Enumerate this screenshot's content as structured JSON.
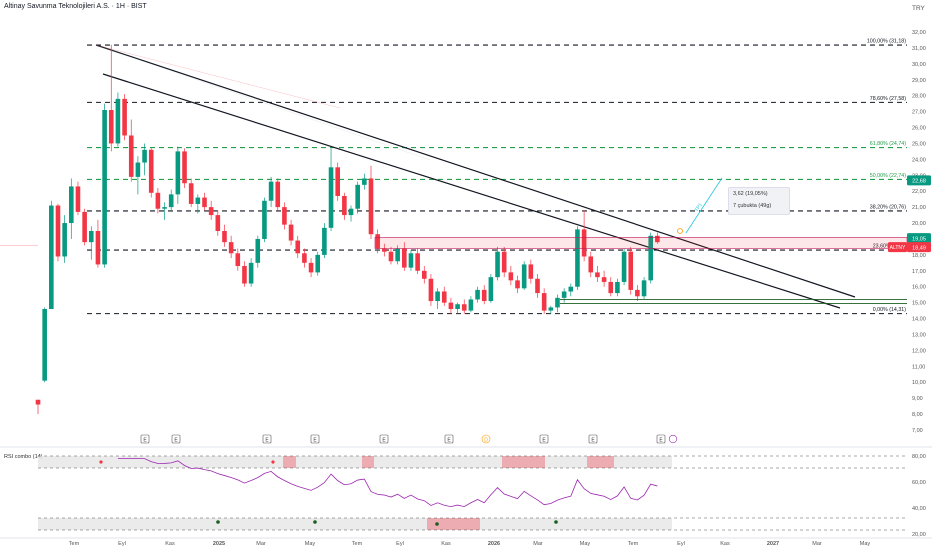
{
  "header": {
    "title": "Altinay Savunma Teknolojileri A.S. · 1H · BIST",
    "currency": "TRY"
  },
  "price_axis": {
    "ticks": [
      "32,00",
      "31,00",
      "30,00",
      "29,00",
      "28,00",
      "27,00",
      "26,00",
      "25,00",
      "24,00",
      "23,00",
      "22,00",
      "21,00",
      "20,00",
      "19,00",
      "18,00",
      "17,00",
      "16,00",
      "15,00",
      "14,00",
      "13,00",
      "12,00",
      "11,00",
      "10,00",
      "9,00",
      "8,00",
      "7,00"
    ],
    "tick_values": [
      32,
      31,
      30,
      29,
      28,
      27,
      26,
      25,
      24,
      23,
      22,
      21,
      20,
      19,
      18,
      17,
      16,
      15,
      14,
      13,
      12,
      11,
      10,
      9,
      8,
      7
    ]
  },
  "badges": {
    "current": "19,05",
    "ticker": "ALTNY",
    "ticker_price": "18,49",
    "green": "22,68"
  },
  "fibonacci": [
    {
      "label": "100,00% (31,18)",
      "value": 31.18,
      "color": "#131722"
    },
    {
      "label": "78,60% (27,58)",
      "value": 27.58,
      "color": "#131722"
    },
    {
      "label": "61,80% (24,74)",
      "value": 24.74,
      "color": "#22a04b"
    },
    {
      "label": "50,00% (22,74)",
      "value": 22.74,
      "color": "#22a04b"
    },
    {
      "label": "38,20% (20,76)",
      "value": 20.76,
      "color": "#131722"
    },
    {
      "label": "23,60% (18,3)",
      "value": 18.3,
      "color": "#131722"
    },
    {
      "label": "0,00% (14,31)",
      "value": 14.31,
      "color": "#131722"
    }
  ],
  "ruler": {
    "line1": "3,62 (19,05%)",
    "line2": "7 çubukta (49g)"
  },
  "time_axis": {
    "labels": [
      "Tem",
      "Eyl",
      "Kas",
      "2025",
      "Mar",
      "May",
      "Tem",
      "Eyl",
      "Kas",
      "2026",
      "Mar",
      "May",
      "Tem",
      "Eyl",
      "Kas",
      "2027",
      "Mar",
      "May"
    ]
  },
  "event_markers": [
    "E",
    "E",
    "E",
    "E",
    "E",
    "E",
    "D",
    "E",
    "E",
    "E"
  ],
  "rsi": {
    "title": "RSI combo (14)",
    "ticks": [
      "80,00",
      "60,00",
      "40,00",
      "20,00"
    ],
    "tick_values": [
      80,
      60,
      40,
      20
    ]
  },
  "colors": {
    "up": "#089981",
    "down": "#f23645",
    "fib_green": "#22a04b",
    "rsi_line": "#9c27b0"
  },
  "chart_data": {
    "type": "candlestick",
    "title": "Altinay Savunma Teknolojileri A.S. · 1H · BIST",
    "ylim": [
      6.5,
      32.6
    ],
    "candles": [
      [
        8.9,
        8.9,
        8.0,
        8.6
      ],
      [
        10.1,
        14.7,
        10.0,
        14.6
      ],
      [
        14.6,
        21.4,
        14.6,
        21.1
      ],
      [
        21.1,
        21.2,
        17.6,
        17.9
      ],
      [
        17.9,
        20.5,
        17.5,
        20.0
      ],
      [
        20.0,
        22.8,
        19.0,
        22.3
      ],
      [
        22.3,
        22.6,
        20.5,
        20.7
      ],
      [
        20.7,
        20.9,
        18.6,
        18.8
      ],
      [
        18.8,
        19.8,
        17.7,
        19.5
      ],
      [
        19.5,
        20.2,
        17.2,
        17.4
      ],
      [
        17.4,
        27.5,
        17.2,
        27.1
      ],
      [
        27.1,
        31.2,
        24.5,
        25.0
      ],
      [
        25.0,
        28.2,
        24.8,
        27.8
      ],
      [
        27.8,
        28.1,
        25.2,
        25.5
      ],
      [
        25.5,
        26.5,
        22.6,
        22.9
      ],
      [
        22.9,
        24.2,
        21.8,
        23.8
      ],
      [
        23.8,
        25.0,
        23.0,
        24.6
      ],
      [
        24.6,
        24.7,
        21.6,
        21.9
      ],
      [
        21.9,
        22.2,
        20.6,
        20.9
      ],
      [
        20.9,
        21.3,
        20.2,
        21.0
      ],
      [
        21.0,
        22.1,
        20.7,
        21.8
      ],
      [
        21.8,
        24.8,
        21.2,
        24.5
      ],
      [
        24.5,
        24.7,
        22.2,
        22.5
      ],
      [
        22.5,
        22.8,
        21.0,
        21.2
      ],
      [
        21.2,
        21.8,
        20.6,
        21.6
      ],
      [
        21.6,
        21.9,
        20.8,
        21.0
      ],
      [
        21.0,
        21.4,
        20.2,
        20.5
      ],
      [
        20.5,
        20.8,
        19.2,
        19.5
      ],
      [
        19.5,
        19.9,
        18.5,
        18.8
      ],
      [
        18.8,
        19.2,
        17.8,
        18.1
      ],
      [
        18.1,
        18.4,
        17.0,
        17.3
      ],
      [
        17.3,
        17.6,
        16.0,
        16.2
      ],
      [
        16.2,
        17.8,
        16.0,
        17.5
      ],
      [
        17.5,
        19.2,
        17.2,
        19.0
      ],
      [
        19.0,
        21.6,
        18.8,
        21.4
      ],
      [
        21.4,
        22.9,
        21.0,
        22.6
      ],
      [
        22.6,
        22.8,
        20.8,
        21.0
      ],
      [
        21.0,
        21.3,
        19.6,
        19.9
      ],
      [
        19.9,
        20.2,
        18.6,
        18.9
      ],
      [
        18.9,
        19.2,
        17.8,
        18.1
      ],
      [
        18.1,
        18.4,
        17.2,
        17.5
      ],
      [
        17.5,
        17.8,
        16.6,
        16.9
      ],
      [
        16.9,
        18.2,
        16.7,
        18.0
      ],
      [
        18.0,
        20.0,
        17.8,
        19.7
      ],
      [
        19.7,
        24.7,
        19.5,
        23.5
      ],
      [
        23.5,
        23.8,
        21.4,
        21.7
      ],
      [
        21.7,
        21.9,
        20.2,
        20.5
      ],
      [
        20.5,
        21.1,
        20.1,
        20.9
      ],
      [
        20.9,
        22.6,
        20.6,
        22.4
      ],
      [
        22.4,
        23.1,
        22.1,
        22.8
      ],
      [
        22.8,
        23.6,
        19.0,
        19.3
      ],
      [
        19.3,
        19.6,
        18.1,
        18.4
      ],
      [
        18.4,
        18.7,
        17.9,
        18.2
      ],
      [
        18.2,
        18.5,
        17.4,
        17.6
      ],
      [
        17.6,
        18.6,
        17.4,
        18.4
      ],
      [
        18.4,
        18.8,
        17.0,
        17.2
      ],
      [
        17.2,
        18.3,
        17.0,
        18.1
      ],
      [
        18.1,
        18.4,
        16.8,
        17.0
      ],
      [
        17.0,
        17.3,
        16.2,
        16.5
      ],
      [
        16.5,
        16.8,
        14.8,
        15.1
      ],
      [
        15.1,
        15.9,
        14.6,
        15.7
      ],
      [
        15.7,
        16.0,
        14.8,
        15.0
      ],
      [
        15.0,
        15.3,
        14.3,
        14.6
      ],
      [
        14.6,
        15.0,
        14.3,
        14.9
      ],
      [
        14.9,
        15.2,
        14.3,
        14.5
      ],
      [
        14.5,
        15.4,
        14.4,
        15.2
      ],
      [
        15.2,
        16.0,
        15.0,
        15.8
      ],
      [
        15.8,
        16.1,
        14.9,
        15.1
      ],
      [
        15.1,
        16.8,
        15.0,
        16.6
      ],
      [
        16.6,
        18.5,
        16.4,
        18.2
      ],
      [
        18.2,
        18.5,
        16.6,
        16.9
      ],
      [
        16.9,
        17.3,
        16.1,
        16.4
      ],
      [
        16.4,
        16.7,
        15.6,
        15.9
      ],
      [
        15.9,
        17.6,
        15.8,
        17.4
      ],
      [
        17.4,
        17.7,
        16.2,
        16.5
      ],
      [
        16.5,
        16.8,
        15.3,
        15.6
      ],
      [
        15.6,
        15.9,
        14.3,
        14.5
      ],
      [
        14.5,
        14.8,
        14.3,
        14.7
      ],
      [
        14.7,
        15.5,
        14.4,
        15.3
      ],
      [
        15.3,
        15.9,
        15.0,
        15.7
      ],
      [
        15.7,
        16.2,
        15.4,
        16.0
      ],
      [
        16.0,
        19.8,
        15.8,
        19.6
      ],
      [
        19.6,
        20.8,
        17.6,
        17.9
      ],
      [
        17.9,
        18.2,
        16.6,
        16.9
      ],
      [
        16.9,
        17.3,
        16.3,
        16.6
      ],
      [
        16.6,
        17.0,
        16.0,
        16.3
      ],
      [
        16.3,
        16.6,
        15.4,
        15.6
      ],
      [
        15.6,
        16.5,
        15.4,
        16.3
      ],
      [
        16.3,
        18.4,
        16.1,
        18.2
      ],
      [
        18.2,
        18.5,
        15.5,
        15.8
      ],
      [
        15.8,
        16.1,
        15.1,
        15.4
      ],
      [
        15.4,
        16.6,
        15.2,
        16.4
      ],
      [
        16.4,
        19.4,
        16.2,
        19.2
      ],
      [
        19.2,
        19.4,
        18.7,
        18.8
      ]
    ]
  }
}
